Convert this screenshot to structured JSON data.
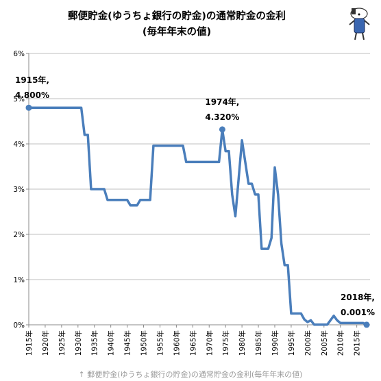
{
  "chart_data": {
    "type": "line",
    "title_line1": "郵便貯金(ゆうちょ銀行の貯金)の通常貯金の金利",
    "title_line2": "(毎年年末の値)",
    "ylim": [
      0,
      6
    ],
    "xlim": [
      1915,
      2018
    ],
    "y_ticks": [
      "0%",
      "1%",
      "2%",
      "3%",
      "4%",
      "5%",
      "6%"
    ],
    "x_ticks": [
      "1915年",
      "1920年",
      "1925年",
      "1930年",
      "1935年",
      "1940年",
      "1945年",
      "1950年",
      "1955年",
      "1960年",
      "1965年",
      "1970年",
      "1975年",
      "1980年",
      "1985年",
      "1990年",
      "1995年",
      "2000年",
      "2005年",
      "2010年",
      "2015年"
    ],
    "series": [
      {
        "color": "#4a7ebb",
        "points": [
          [
            1915,
            4.8
          ],
          [
            1931,
            4.8
          ],
          [
            1932,
            4.2
          ],
          [
            1933,
            4.2
          ],
          [
            1934,
            3.0
          ],
          [
            1938,
            3.0
          ],
          [
            1939,
            2.76
          ],
          [
            1945,
            2.76
          ],
          [
            1946,
            2.64
          ],
          [
            1948,
            2.64
          ],
          [
            1949,
            2.76
          ],
          [
            1952,
            2.76
          ],
          [
            1953,
            3.96
          ],
          [
            1962,
            3.96
          ],
          [
            1963,
            3.6
          ],
          [
            1973,
            3.6
          ],
          [
            1974,
            4.32
          ],
          [
            1975,
            3.84
          ],
          [
            1976,
            3.84
          ],
          [
            1977,
            2.88
          ],
          [
            1978,
            2.4
          ],
          [
            1980,
            4.08
          ],
          [
            1981,
            3.6
          ],
          [
            1982,
            3.12
          ],
          [
            1983,
            3.12
          ],
          [
            1984,
            2.88
          ],
          [
            1985,
            2.88
          ],
          [
            1986,
            1.68
          ],
          [
            1988,
            1.68
          ],
          [
            1989,
            1.92
          ],
          [
            1990,
            3.48
          ],
          [
            1991,
            2.88
          ],
          [
            1992,
            1.8
          ],
          [
            1993,
            1.32
          ],
          [
            1994,
            1.32
          ],
          [
            1995,
            0.25
          ],
          [
            1998,
            0.25
          ],
          [
            1999,
            0.12
          ],
          [
            2000,
            0.06
          ],
          [
            2001,
            0.1
          ],
          [
            2002,
            0.005
          ],
          [
            2006,
            0.005
          ],
          [
            2008,
            0.2
          ],
          [
            2009,
            0.1
          ],
          [
            2010,
            0.04
          ],
          [
            2017,
            0.04
          ],
          [
            2018,
            0.001
          ]
        ]
      }
    ],
    "annotations": [
      {
        "x": 1915,
        "y": 4.8,
        "line1": "1915年,",
        "line2": "4.800%"
      },
      {
        "x": 1974,
        "y": 4.32,
        "line1": "1974年,",
        "line2": "4.320%"
      },
      {
        "x": 2018,
        "y": 0.001,
        "line1": "2018年,",
        "line2": "0.001%"
      }
    ],
    "grid": "horizontal",
    "legend": "none"
  },
  "caption": "↑ 郵便貯金(ゆうちょ銀行の貯金)の通常貯金の金利(毎年年末の値)",
  "mascot_icon": "mascot-character-icon"
}
